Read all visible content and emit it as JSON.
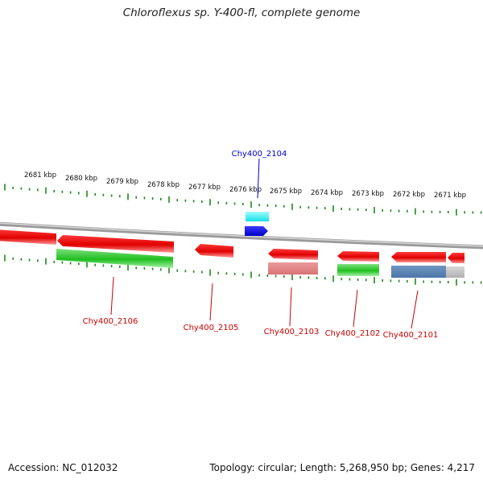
{
  "title": "Chloroflexus sp. Y-400-fl, complete genome",
  "colors": {
    "label_red": "#cc0000",
    "label_blue": "#0000cc",
    "tick_green": "#1a8a1a",
    "backbone": "#8c8c8c"
  },
  "scale": {
    "ticks_kbp": [
      "2681 kbp",
      "2680 kbp",
      "2679 kbp",
      "2678 kbp",
      "2677 kbp",
      "2676 kbp",
      "2675 kbp",
      "2674 kbp",
      "2673 kbp",
      "2672 kbp",
      "2671 kbp"
    ]
  },
  "genes": [
    {
      "id": "Chy400_2106",
      "color": "#cc0000"
    },
    {
      "id": "Chy400_2105",
      "color": "#cc0000"
    },
    {
      "id": "Chy400_2104",
      "color": "#0000cc"
    },
    {
      "id": "Chy400_2103",
      "color": "#cc0000"
    },
    {
      "id": "Chy400_2102",
      "color": "#cc0000"
    },
    {
      "id": "Chy400_2101",
      "color": "#cc0000"
    }
  ],
  "footer": {
    "accession": "Accession: NC_012032",
    "summary": "Topology: circular; Length: 5,268,950 bp; Genes: 4,217"
  }
}
